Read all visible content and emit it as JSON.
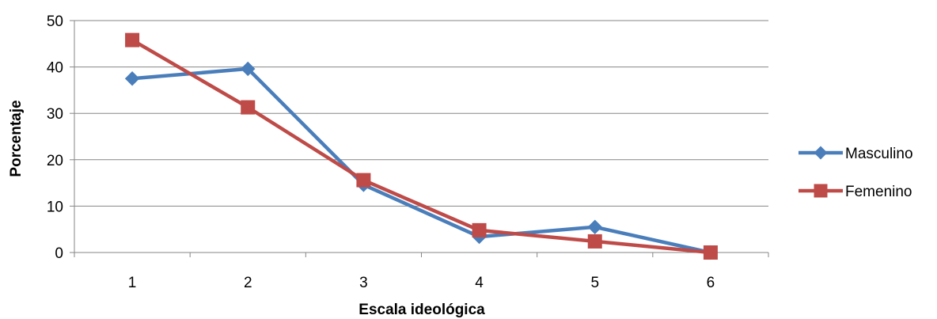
{
  "chart_data": {
    "type": "line",
    "title": "",
    "xlabel": "Escala ideológica",
    "ylabel": "Porcentaje",
    "categories": [
      "1",
      "2",
      "3",
      "4",
      "5",
      "6"
    ],
    "ylim": [
      0,
      50
    ],
    "yticks": [
      0,
      10,
      20,
      30,
      40,
      50
    ],
    "grid": true,
    "legend_position": "right",
    "series": [
      {
        "name": "Masculino",
        "values": [
          37.5,
          39.6,
          14.6,
          3.4,
          5.5,
          0.0
        ],
        "color": "#4a7ebb",
        "marker": "diamond"
      },
      {
        "name": "Femenino",
        "values": [
          45.8,
          31.3,
          15.6,
          4.8,
          2.4,
          0.0
        ],
        "color": "#be4b48",
        "marker": "square"
      }
    ]
  }
}
